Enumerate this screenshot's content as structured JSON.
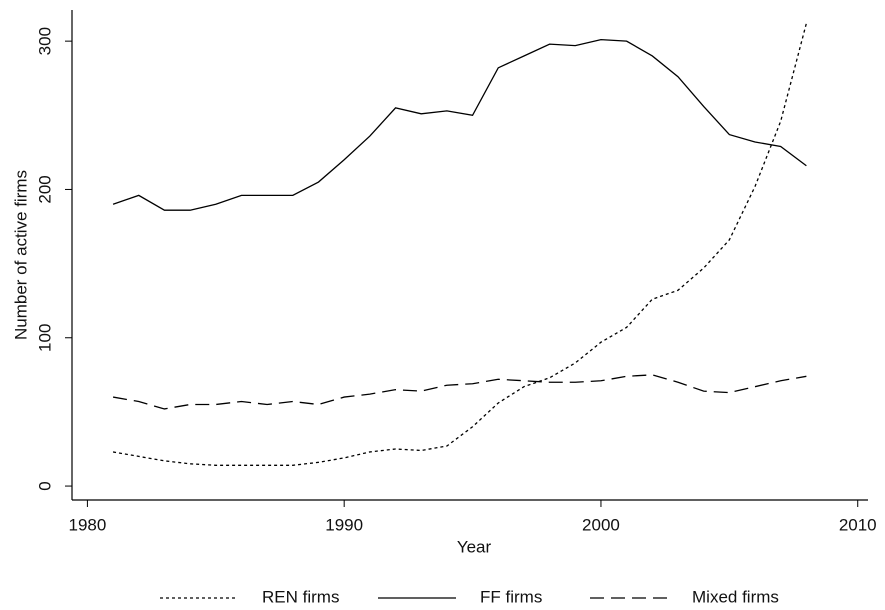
{
  "chart_data": {
    "type": "line",
    "x_label": "Year",
    "y_label": "Number of active firms",
    "x": [
      1981,
      1982,
      1983,
      1984,
      1985,
      1986,
      1987,
      1988,
      1989,
      1990,
      1991,
      1992,
      1993,
      1994,
      1995,
      1996,
      1997,
      1998,
      1999,
      2000,
      2001,
      2002,
      2003,
      2004,
      2005,
      2006,
      2007,
      2008
    ],
    "series": [
      {
        "name": "REN firms",
        "color": "#000000",
        "style": "dotted",
        "values": [
          23,
          20,
          17,
          15,
          14,
          14,
          14,
          14,
          16,
          19,
          23,
          25,
          24,
          27,
          40,
          56,
          67,
          73,
          83,
          97,
          107,
          126,
          132,
          147,
          166,
          202,
          246,
          312
        ]
      },
      {
        "name": "FF firms",
        "color": "#000000",
        "style": "solid",
        "values": [
          190,
          196,
          186,
          186,
          190,
          196,
          196,
          196,
          205,
          220,
          236,
          255,
          251,
          253,
          250,
          282,
          290,
          298,
          297,
          301,
          300,
          290,
          276,
          256,
          237,
          232,
          229,
          216
        ]
      },
      {
        "name": "Mixed firms",
        "color": "#000000",
        "style": "dashed",
        "values": [
          60,
          57,
          52,
          55,
          55,
          57,
          55,
          57,
          55,
          60,
          62,
          65,
          64,
          68,
          69,
          72,
          71,
          70,
          70,
          71,
          74,
          75,
          70,
          64,
          63,
          67,
          71,
          74
        ]
      }
    ],
    "xlim": [
      1979.4,
      2010.4
    ],
    "xticks": [
      1980,
      1990,
      2000,
      2010
    ],
    "ylim": [
      -9.4,
      321
    ],
    "yticks": [
      0,
      100,
      200,
      300
    ],
    "legend": "bottom"
  }
}
